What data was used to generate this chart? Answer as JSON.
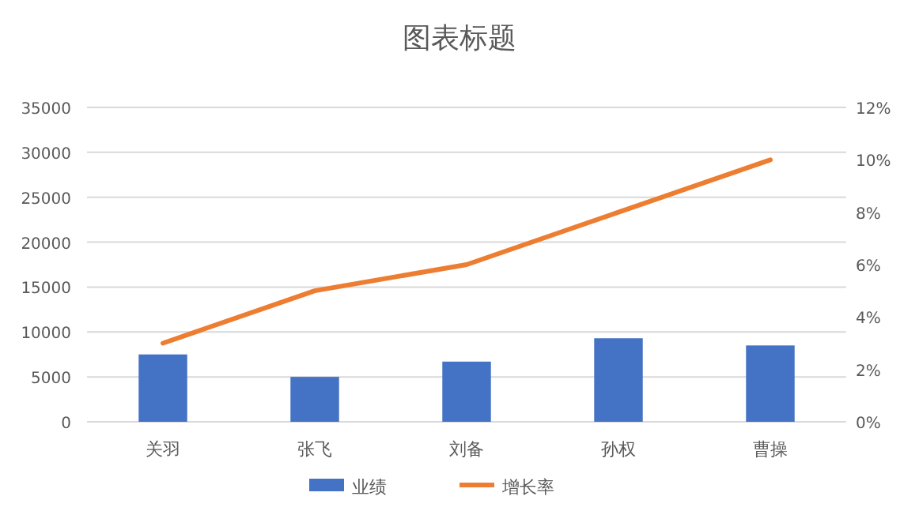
{
  "chart_data": {
    "type": "bar",
    "title": "图表标题",
    "categories": [
      "关羽",
      "张飞",
      "刘备",
      "孙权",
      "曹操"
    ],
    "series": [
      {
        "name": "业绩",
        "color": "#4472c4",
        "values": [
          7500,
          5000,
          6700,
          9300,
          8500
        ]
      },
      {
        "name": "增长率",
        "type": "line",
        "axis": "y2",
        "color": "#ed7d31",
        "values": [
          3,
          5,
          6,
          8,
          10
        ]
      }
    ],
    "ylim": [
      0,
      35000
    ],
    "yticks": [
      0,
      5000,
      10000,
      15000,
      20000,
      25000,
      30000,
      35000
    ],
    "y2lim": [
      0,
      12
    ],
    "y2ticks": [
      {
        "value": 0,
        "label": "0%"
      },
      {
        "value": 2,
        "label": "2%"
      },
      {
        "value": 4,
        "label": "4%"
      },
      {
        "value": 6,
        "label": "6%"
      },
      {
        "value": 8,
        "label": "8%"
      },
      {
        "value": 10,
        "label": "10%"
      },
      {
        "value": 12,
        "label": "12%"
      }
    ],
    "grid": "y",
    "legend": "bottom",
    "marker": "none",
    "line_style": "solid"
  }
}
